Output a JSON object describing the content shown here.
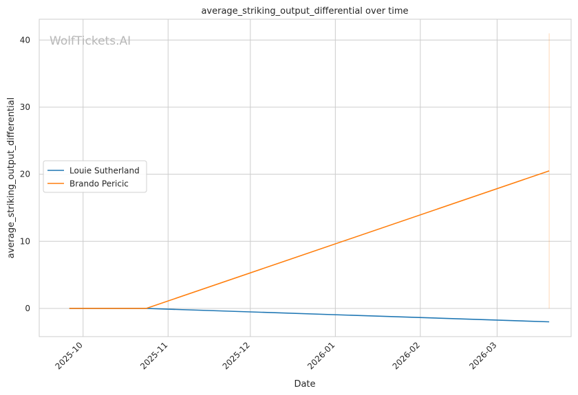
{
  "watermark": "WolfTickets.AI",
  "chart_data": {
    "type": "line",
    "title": "average_striking_output_differential over time",
    "xlabel": "Date",
    "ylabel": "average_striking_output_differential",
    "x_ticks": [
      "2025-10",
      "2025-11",
      "2025-12",
      "2026-01",
      "2026-02",
      "2026-03"
    ],
    "x_tick_dates": [
      "2025-10-01",
      "2025-11-01",
      "2025-12-01",
      "2026-01-01",
      "2026-02-01",
      "2026-03-01"
    ],
    "xlim": [
      "2025-09-15",
      "2026-03-28"
    ],
    "y_ticks": [
      0,
      10,
      20,
      30,
      40
    ],
    "ylim": [
      -4.2,
      43.1
    ],
    "grid": true,
    "legend_position": "center-left",
    "series": [
      {
        "name": "Louie Sutherland",
        "color": "#1f77b4",
        "points": [
          {
            "x": "2025-09-26",
            "y": 0
          },
          {
            "x": "2025-10-24",
            "y": 0
          },
          {
            "x": "2026-03-20",
            "y": -2.0
          }
        ]
      },
      {
        "name": "Brando Pericic",
        "color": "#ff7f0e",
        "points": [
          {
            "x": "2025-09-26",
            "y": 0
          },
          {
            "x": "2025-10-24",
            "y": 0
          },
          {
            "x": "2026-03-20",
            "y": 20.5
          }
        ]
      }
    ],
    "annotations": [
      {
        "type": "vertical-band",
        "x": "2026-03-20",
        "y_range": [
          0,
          41
        ],
        "color": "#ff7f0e"
      }
    ]
  }
}
